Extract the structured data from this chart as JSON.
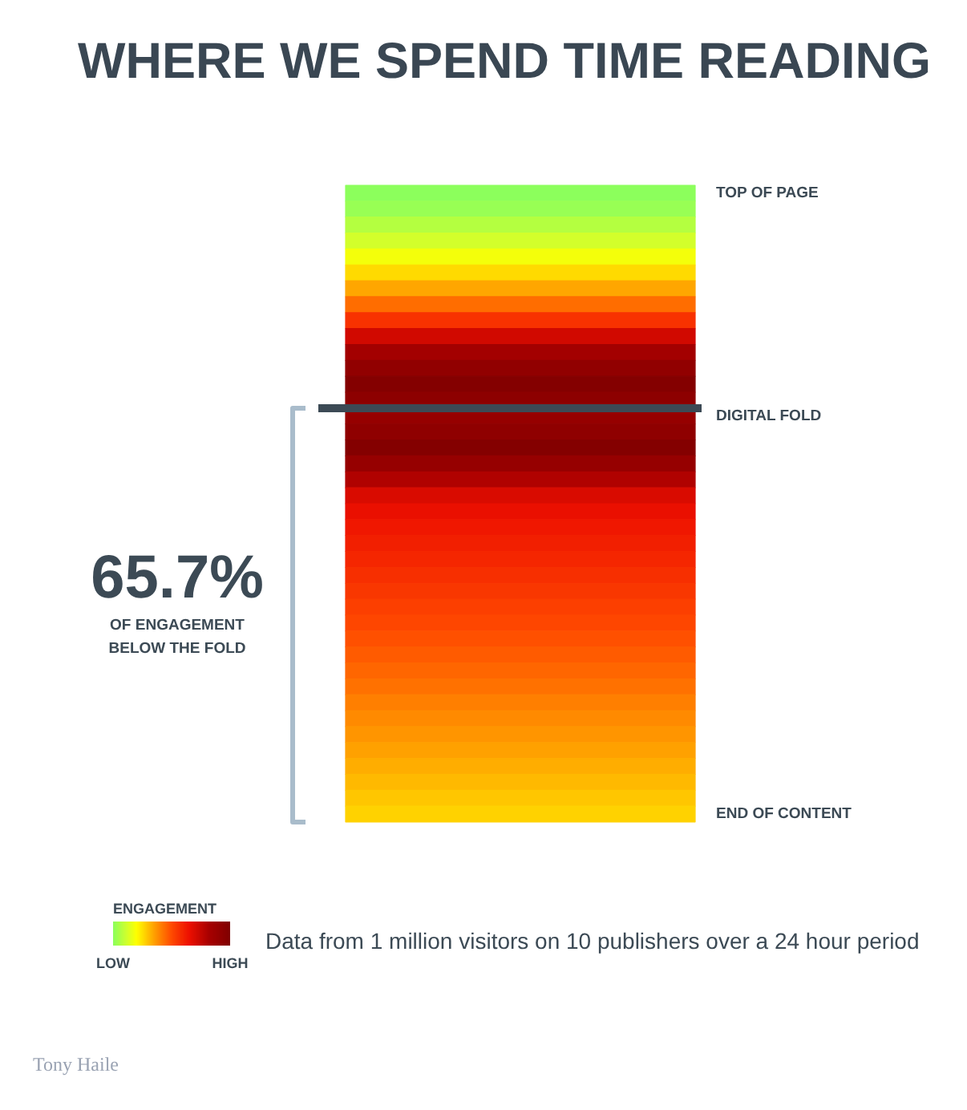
{
  "chart_data": {
    "type": "heatmap",
    "title": "WHERE WE SPEND TIME READING",
    "categories": [
      null
    ],
    "y_categories": [
      null,
      null,
      null,
      null,
      null,
      null,
      null,
      null,
      null,
      null,
      null,
      null,
      null,
      null,
      null,
      null,
      null,
      null,
      null,
      null,
      null,
      null,
      null,
      null,
      null,
      null,
      null,
      null,
      null,
      null,
      null,
      null,
      null,
      null,
      null,
      null,
      null,
      null,
      null,
      null
    ],
    "y2_categories": [
      "TOP OF PAGE",
      null,
      null,
      null,
      null,
      null,
      null,
      null,
      null,
      null,
      null,
      null,
      null,
      null,
      "DIGITAL FOLD",
      null,
      null,
      null,
      null,
      null,
      null,
      null,
      null,
      null,
      null,
      null,
      null,
      null,
      null,
      null,
      null,
      null,
      null,
      null,
      null,
      null,
      null,
      null,
      null,
      "END OF CONTENT"
    ],
    "cells": [
      [
        0.0
      ],
      [
        0.02
      ],
      [
        0.07
      ],
      [
        0.12
      ],
      [
        0.18
      ],
      [
        0.26
      ],
      [
        0.34
      ],
      [
        0.44
      ],
      [
        0.56
      ],
      [
        0.72
      ],
      [
        0.84
      ],
      [
        0.92
      ],
      [
        0.98
      ],
      [
        0.94
      ],
      [
        0.9
      ],
      [
        0.93
      ],
      [
        0.98
      ],
      [
        0.9
      ],
      [
        0.8
      ],
      [
        0.7
      ],
      [
        0.66
      ],
      [
        0.63
      ],
      [
        0.61
      ],
      [
        0.59
      ],
      [
        0.57
      ],
      [
        0.55
      ],
      [
        0.53
      ],
      [
        0.51
      ],
      [
        0.49
      ],
      [
        0.47
      ],
      [
        0.45
      ],
      [
        0.43
      ],
      [
        0.41
      ],
      [
        0.39
      ],
      [
        0.37
      ],
      [
        0.35
      ],
      [
        0.33
      ],
      [
        0.31
      ],
      [
        0.29
      ],
      [
        0.27
      ]
    ],
    "clim": [
      0,
      1
    ],
    "cticks": [
      {
        "value": 0,
        "label": "LOW"
      },
      {
        "value": 1,
        "label": "HIGH"
      }
    ],
    "clabel": "ENGAGEMENT",
    "annotations": [
      "65.7%",
      "OF ENGAGEMENT BELOW THE FOLD",
      "Data from 1 million visitors on 10 publishers over a 24 hour period",
      "Tony Haile"
    ]
  }
}
